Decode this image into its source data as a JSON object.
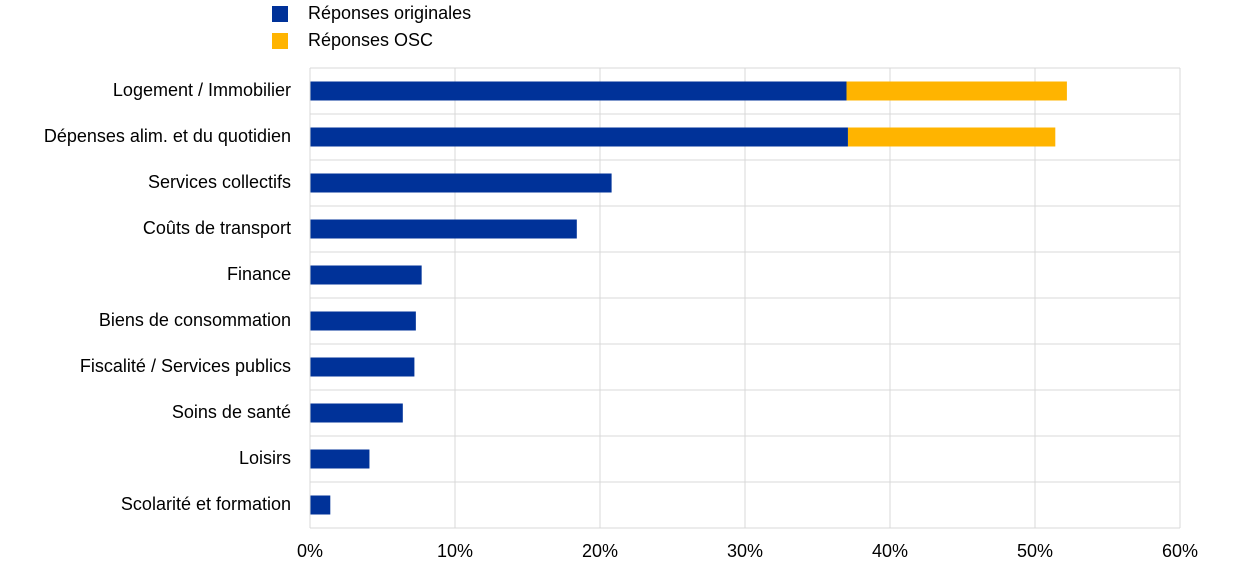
{
  "chart_data": {
    "type": "stacked-bar-horizontal",
    "categories": [
      "Logement / Immobilier",
      "Dépenses alim. et du quotidien",
      "Services collectifs",
      "Coûts de transport",
      "Finance",
      "Biens de consommation",
      "Fiscalité / Services publics",
      "Soins de santé",
      "Loisirs",
      "Scolarité et formation"
    ],
    "series": [
      {
        "name": "Réponses originales",
        "color": "#003299",
        "values": [
          37,
          37.1,
          20.8,
          18.4,
          7.7,
          7.3,
          7.2,
          6.4,
          4.1,
          1.4
        ]
      },
      {
        "name": "Réponses OSC",
        "color": "#ffb400",
        "values": [
          15.2,
          14.3,
          0,
          0,
          0,
          0,
          0,
          0,
          0,
          0
        ]
      }
    ],
    "xlim": [
      0,
      60
    ],
    "xticks": [
      {
        "value": 0,
        "label": "0%"
      },
      {
        "value": 10,
        "label": "10%"
      },
      {
        "value": 20,
        "label": "20%"
      },
      {
        "value": 30,
        "label": "30%"
      },
      {
        "value": 40,
        "label": "40%"
      },
      {
        "value": 50,
        "label": "50%"
      },
      {
        "value": 60,
        "label": "60%"
      }
    ],
    "grid": true
  }
}
